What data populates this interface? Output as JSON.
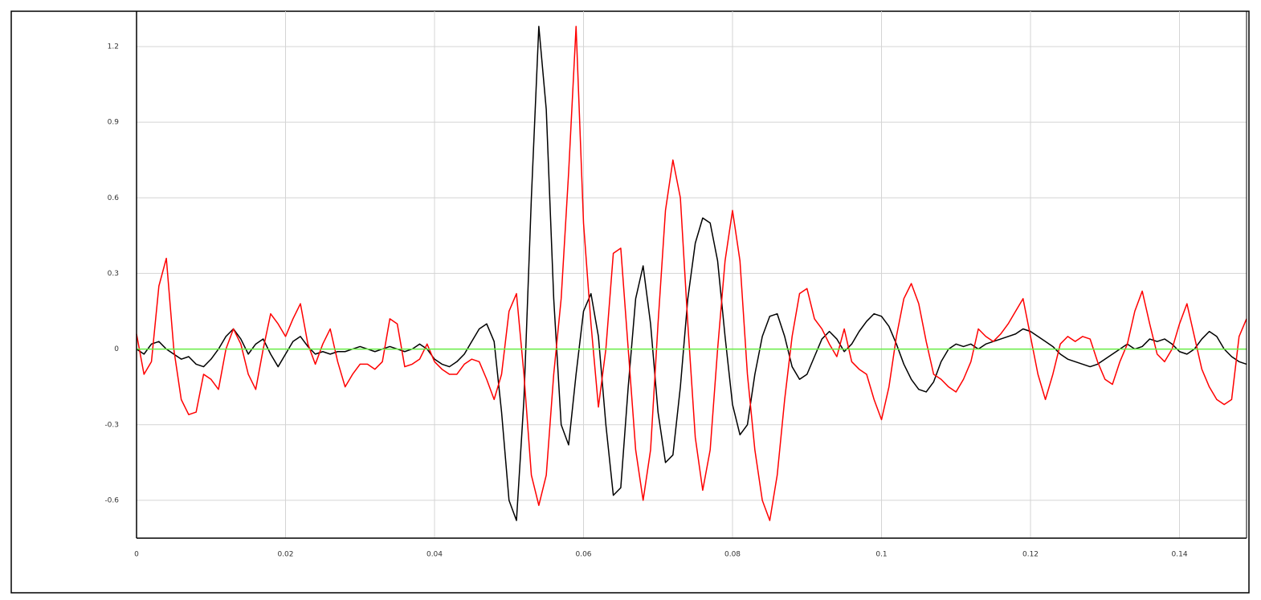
{
  "chart_data": {
    "type": "line",
    "x": [
      0,
      0.001,
      0.002,
      0.003,
      0.004,
      0.005,
      0.006,
      0.007,
      0.008,
      0.009,
      0.01,
      0.011,
      0.012,
      0.013,
      0.014,
      0.015,
      0.016,
      0.017,
      0.018,
      0.019,
      0.02,
      0.021,
      0.022,
      0.023,
      0.024,
      0.025,
      0.026,
      0.027,
      0.028,
      0.029,
      0.03,
      0.031,
      0.032,
      0.033,
      0.034,
      0.035,
      0.036,
      0.037,
      0.038,
      0.039,
      0.04,
      0.041,
      0.042,
      0.043,
      0.044,
      0.045,
      0.046,
      0.047,
      0.048,
      0.049,
      0.05,
      0.051,
      0.052,
      0.053,
      0.054,
      0.055,
      0.056,
      0.057,
      0.058,
      0.059,
      0.06,
      0.061,
      0.062,
      0.063,
      0.064,
      0.065,
      0.066,
      0.067,
      0.068,
      0.069,
      0.07,
      0.071,
      0.072,
      0.073,
      0.074,
      0.075,
      0.076,
      0.077,
      0.078,
      0.079,
      0.08,
      0.081,
      0.082,
      0.083,
      0.084,
      0.085,
      0.086,
      0.087,
      0.088,
      0.089,
      0.09,
      0.091,
      0.092,
      0.093,
      0.094,
      0.095,
      0.096,
      0.097,
      0.098,
      0.099,
      0.1,
      0.101,
      0.102,
      0.103,
      0.104,
      0.105,
      0.106,
      0.107,
      0.108,
      0.109,
      0.11,
      0.111,
      0.112,
      0.113,
      0.114,
      0.115,
      0.116,
      0.117,
      0.118,
      0.119,
      0.12,
      0.121,
      0.122,
      0.123,
      0.124,
      0.125,
      0.126,
      0.127,
      0.128,
      0.129,
      0.13,
      0.131,
      0.132,
      0.133,
      0.134,
      0.135,
      0.136,
      0.137,
      0.138,
      0.139,
      0.14,
      0.141,
      0.142,
      0.143,
      0.144,
      0.145,
      0.146,
      0.147,
      0.148,
      0.149
    ],
    "series": [
      {
        "color": "#000000",
        "values": [
          0.0,
          -0.02,
          0.02,
          0.03,
          0.0,
          -0.02,
          -0.04,
          -0.03,
          -0.06,
          -0.07,
          -0.04,
          0.0,
          0.05,
          0.08,
          0.04,
          -0.02,
          0.02,
          0.04,
          -0.02,
          -0.07,
          -0.02,
          0.03,
          0.05,
          0.01,
          -0.02,
          -0.01,
          -0.02,
          -0.01,
          -0.01,
          0.0,
          0.01,
          0.0,
          -0.01,
          0.0,
          0.01,
          0.0,
          -0.01,
          0.0,
          0.02,
          0.0,
          -0.04,
          -0.06,
          -0.07,
          -0.05,
          -0.02,
          0.03,
          0.08,
          0.1,
          0.03,
          -0.25,
          -0.6,
          -0.68,
          -0.2,
          0.6,
          1.28,
          0.95,
          0.2,
          -0.3,
          -0.38,
          -0.1,
          0.15,
          0.22,
          0.05,
          -0.3,
          -0.58,
          -0.55,
          -0.15,
          0.2,
          0.33,
          0.1,
          -0.25,
          -0.45,
          -0.42,
          -0.15,
          0.2,
          0.42,
          0.52,
          0.5,
          0.35,
          0.05,
          -0.22,
          -0.34,
          -0.3,
          -0.1,
          0.05,
          0.13,
          0.14,
          0.05,
          -0.07,
          -0.12,
          -0.1,
          -0.03,
          0.04,
          0.07,
          0.04,
          -0.01,
          0.02,
          0.07,
          0.11,
          0.14,
          0.13,
          0.09,
          0.02,
          -0.06,
          -0.12,
          -0.16,
          -0.17,
          -0.13,
          -0.05,
          0.0,
          0.02,
          0.01,
          0.02,
          0.0,
          0.02,
          0.03,
          0.04,
          0.05,
          0.06,
          0.08,
          0.07,
          0.05,
          0.03,
          0.01,
          -0.02,
          -0.04,
          -0.05,
          -0.06,
          -0.07,
          -0.06,
          -0.04,
          -0.02,
          0.0,
          0.02,
          0.0,
          0.01,
          0.04,
          0.03,
          0.04,
          0.02,
          -0.01,
          -0.02,
          0.0,
          0.04,
          0.07,
          0.05,
          0.0,
          -0.03,
          -0.05,
          -0.06
        ]
      },
      {
        "color": "#ff0000",
        "values": [
          0.06,
          -0.1,
          -0.05,
          0.25,
          0.36,
          0.0,
          -0.2,
          -0.26,
          -0.25,
          -0.1,
          -0.12,
          -0.16,
          0.0,
          0.08,
          0.02,
          -0.1,
          -0.16,
          0.0,
          0.14,
          0.1,
          0.05,
          0.12,
          0.18,
          0.02,
          -0.06,
          0.02,
          0.08,
          -0.05,
          -0.15,
          -0.1,
          -0.06,
          -0.06,
          -0.08,
          -0.05,
          0.12,
          0.1,
          -0.07,
          -0.06,
          -0.04,
          0.02,
          -0.05,
          -0.08,
          -0.1,
          -0.1,
          -0.06,
          -0.04,
          -0.05,
          -0.12,
          -0.2,
          -0.1,
          0.15,
          0.22,
          -0.1,
          -0.5,
          -0.62,
          -0.5,
          -0.1,
          0.2,
          0.7,
          1.28,
          0.5,
          0.1,
          -0.23,
          0.0,
          0.38,
          0.4,
          0.0,
          -0.4,
          -0.6,
          -0.4,
          0.1,
          0.55,
          0.75,
          0.6,
          0.1,
          -0.35,
          -0.56,
          -0.4,
          0.0,
          0.35,
          0.55,
          0.35,
          -0.1,
          -0.4,
          -0.6,
          -0.68,
          -0.5,
          -0.2,
          0.05,
          0.22,
          0.24,
          0.12,
          0.08,
          0.02,
          -0.03,
          0.08,
          -0.05,
          -0.08,
          -0.1,
          -0.2,
          -0.28,
          -0.15,
          0.05,
          0.2,
          0.26,
          0.18,
          0.03,
          -0.1,
          -0.12,
          -0.15,
          -0.17,
          -0.12,
          -0.05,
          0.08,
          0.05,
          0.03,
          0.06,
          0.1,
          0.15,
          0.2,
          0.05,
          -0.1,
          -0.2,
          -0.1,
          0.02,
          0.05,
          0.03,
          0.05,
          0.04,
          -0.05,
          -0.12,
          -0.14,
          -0.05,
          0.02,
          0.15,
          0.23,
          0.1,
          -0.02,
          -0.05,
          0.0,
          0.1,
          0.18,
          0.05,
          -0.08,
          -0.15,
          -0.2,
          -0.22,
          -0.2,
          0.05,
          0.12
        ]
      },
      {
        "color": "#66ee44",
        "values": [
          0,
          0,
          0,
          0,
          0,
          0,
          0,
          0,
          0,
          0,
          0,
          0,
          0,
          0,
          0,
          0,
          0,
          0,
          0,
          0,
          0,
          0,
          0,
          0,
          0,
          0,
          0,
          0,
          0,
          0,
          0,
          0,
          0,
          0,
          0,
          0,
          0,
          0,
          0,
          0,
          0,
          0,
          0,
          0,
          0,
          0,
          0,
          0,
          0,
          0,
          0,
          0,
          0,
          0,
          0,
          0,
          0,
          0,
          0,
          0,
          0,
          0,
          0,
          0,
          0,
          0,
          0,
          0,
          0,
          0,
          0,
          0,
          0,
          0,
          0,
          0,
          0,
          0,
          0,
          0,
          0,
          0,
          0,
          0,
          0,
          0,
          0,
          0,
          0,
          0,
          0,
          0,
          0,
          0,
          0,
          0,
          0,
          0,
          0,
          0,
          0,
          0,
          0,
          0,
          0,
          0,
          0,
          0,
          0,
          0,
          0,
          0,
          0,
          0,
          0,
          0,
          0,
          0,
          0,
          0,
          0,
          0,
          0,
          0,
          0,
          0,
          0,
          0,
          0,
          0,
          0,
          0,
          0,
          0,
          0,
          0,
          0,
          0,
          0,
          0,
          0,
          0,
          0,
          0,
          0,
          0,
          0,
          0,
          0,
          0
        ]
      }
    ],
    "xlim": [
      0,
      0.149
    ],
    "ylim": [
      -0.75,
      1.34
    ],
    "xticks": [
      0,
      0.02,
      0.04,
      0.06,
      0.08,
      0.1,
      0.12,
      0.14
    ],
    "yticks": [
      -0.6,
      -0.3,
      0,
      0.3,
      0.6,
      0.9,
      1.2
    ],
    "grid": true
  }
}
